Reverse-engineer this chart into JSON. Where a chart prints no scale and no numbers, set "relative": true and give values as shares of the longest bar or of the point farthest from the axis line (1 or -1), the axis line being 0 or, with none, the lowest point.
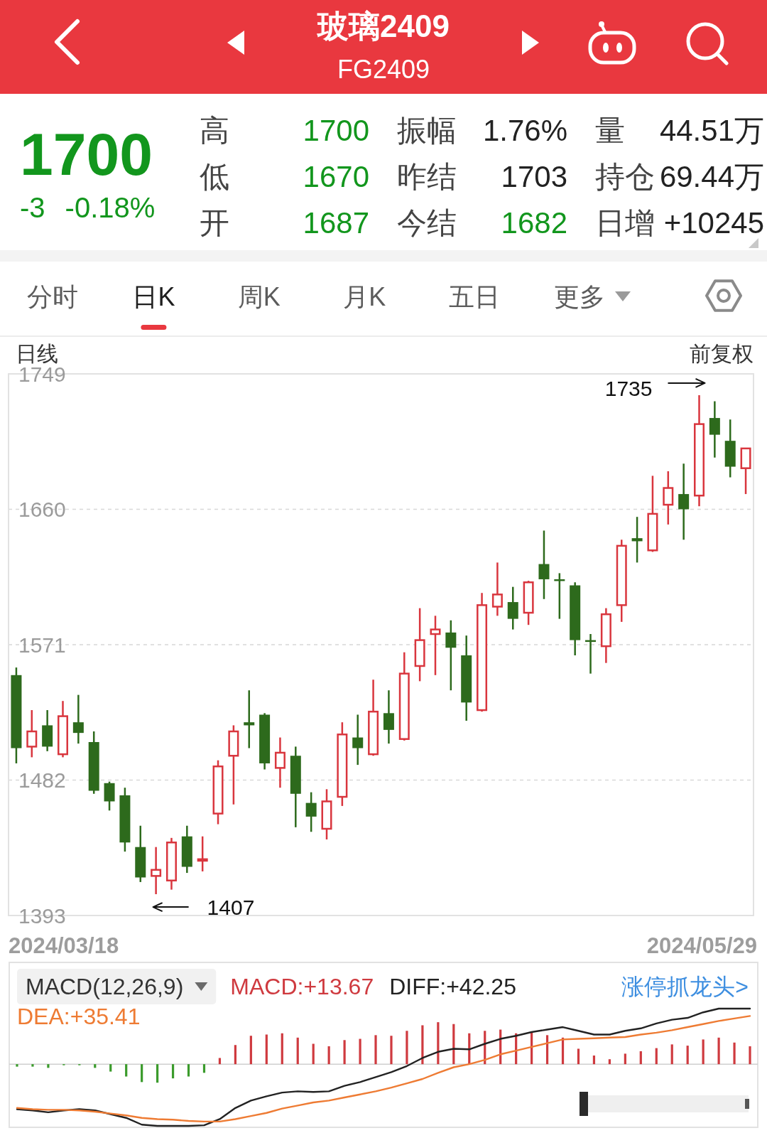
{
  "chart_data": [
    {
      "type": "other",
      "title": "玻璃2409",
      "subtitle": "FG2409",
      "annotations": [
        "1700",
        "-3",
        "-0.18%",
        "高",
        "1700",
        "振幅",
        "1.76%",
        "量",
        "44.51万",
        "低",
        "1670",
        "昨结",
        "1703",
        "持仓",
        "69.44万",
        "开",
        "1687",
        "今结",
        "1682",
        "日增",
        "+10245"
      ]
    },
    {
      "type": "other",
      "annotations": [
        "分时",
        "日K",
        "周K",
        "月K",
        "五日",
        "更多"
      ]
    },
    {
      "type": "candlestick",
      "title": "日线",
      "categories": [
        null,
        null,
        null,
        null,
        null,
        null,
        null,
        null,
        null,
        null,
        null,
        null,
        null,
        null,
        null,
        null,
        null,
        null,
        null,
        null,
        null,
        null,
        null,
        null,
        null,
        null,
        null,
        null,
        null,
        null,
        null,
        null,
        null,
        null,
        null,
        null,
        null,
        null,
        null,
        null,
        null,
        null,
        null,
        null,
        null,
        null,
        null,
        null
      ],
      "ohlc": [
        [
          1551,
          1556,
          1493,
          1503
        ],
        [
          1504,
          1528,
          1497,
          1514
        ],
        [
          1518,
          1528,
          1501,
          1504
        ],
        [
          1499,
          1534,
          1497,
          1524
        ],
        [
          1520,
          1538,
          1506,
          1513
        ],
        [
          1507,
          1514,
          1473,
          1475
        ],
        [
          1480,
          1481,
          1462,
          1468
        ],
        [
          1472,
          1477,
          1435,
          1441
        ],
        [
          1438,
          1452,
          1415,
          1418
        ],
        [
          1419,
          1438,
          1407,
          1423
        ],
        [
          1416,
          1444,
          1410,
          1441
        ],
        [
          1445,
          1452,
          1421,
          1425
        ],
        [
          1429,
          1445,
          1422,
          1430
        ],
        [
          1460,
          1495,
          1453,
          1491
        ],
        [
          1498,
          1518,
          1466,
          1514
        ],
        [
          1520,
          1541,
          1503,
          1518
        ],
        [
          1525,
          1526,
          1489,
          1493
        ],
        [
          1490,
          1510,
          1477,
          1500
        ],
        [
          1498,
          1504,
          1451,
          1473
        ],
        [
          1467,
          1474,
          1448,
          1458
        ],
        [
          1450,
          1476,
          1443,
          1468
        ],
        [
          1471,
          1520,
          1465,
          1512
        ],
        [
          1510,
          1525,
          1492,
          1503
        ],
        [
          1499,
          1548,
          1498,
          1527
        ],
        [
          1526,
          1541,
          1506,
          1515
        ],
        [
          1509,
          1566,
          1508,
          1552
        ],
        [
          1557,
          1595,
          1547,
          1574
        ],
        [
          1578,
          1590,
          1551,
          1581
        ],
        [
          1579,
          1587,
          1541,
          1569
        ],
        [
          1564,
          1577,
          1521,
          1533
        ],
        [
          1528,
          1605,
          1527,
          1597
        ],
        [
          1596,
          1625,
          1590,
          1604
        ],
        [
          1599,
          1609,
          1581,
          1588
        ],
        [
          1592,
          1613,
          1584,
          1612
        ],
        [
          1624,
          1646,
          1601,
          1614
        ],
        [
          1614,
          1618,
          1588,
          1613
        ],
        [
          1610,
          1612,
          1564,
          1574
        ],
        [
          1574,
          1578,
          1552,
          1573
        ],
        [
          1570,
          1595,
          1559,
          1591
        ],
        [
          1597,
          1640,
          1586,
          1636
        ],
        [
          1641,
          1655,
          1625,
          1639
        ],
        [
          1633,
          1682,
          1632,
          1657
        ],
        [
          1663,
          1685,
          1650,
          1674
        ],
        [
          1670,
          1690,
          1640,
          1660
        ],
        [
          1669,
          1735,
          1662,
          1716
        ],
        [
          1720,
          1731,
          1694,
          1709
        ],
        [
          1705,
          1719,
          1681,
          1688
        ],
        [
          1687,
          1700,
          1670,
          1700
        ]
      ],
      "colors": [
        "#2d6a1c",
        "#d9363e",
        "#2d6a1c",
        "#d9363e",
        "#2d6a1c",
        "#2d6a1c",
        "#2d6a1c",
        "#2d6a1c",
        "#2d6a1c",
        "#d9363e",
        "#d9363e",
        "#2d6a1c",
        "#d9363e",
        "#d9363e",
        "#d9363e",
        "#2d6a1c",
        "#2d6a1c",
        "#d9363e",
        "#2d6a1c",
        "#2d6a1c",
        "#d9363e",
        "#d9363e",
        "#2d6a1c",
        "#d9363e",
        "#2d6a1c",
        "#d9363e",
        "#d9363e",
        "#d9363e",
        "#2d6a1c",
        "#2d6a1c",
        "#d9363e",
        "#d9363e",
        "#2d6a1c",
        "#d9363e",
        "#2d6a1c",
        "#2d6a1c",
        "#2d6a1c",
        "#2d6a1c",
        "#d9363e",
        "#d9363e",
        "#2d6a1c",
        "#d9363e",
        "#d9363e",
        "#2d6a1c",
        "#d9363e",
        "#2d6a1c",
        "#2d6a1c",
        "#d9363e"
      ],
      "ylim": [
        1393,
        1749
      ],
      "yticks": [
        1749,
        1660,
        1571,
        1482,
        1393
      ],
      "grid": "y",
      "annotations": [
        "前复权",
        "2024/03/18",
        "2024/05/29",
        "1735",
        "1407"
      ]
    },
    {
      "type": "line",
      "title": "MACD(12,26,9)",
      "relative": true,
      "legend": "top",
      "categories": [
        null,
        null,
        null,
        null,
        null,
        null,
        null,
        null,
        null,
        null,
        null,
        null,
        null,
        null,
        null,
        null,
        null,
        null,
        null,
        null,
        null,
        null,
        null,
        null,
        null,
        null,
        null,
        null,
        null,
        null,
        null,
        null,
        null,
        null,
        null,
        null,
        null,
        null,
        null,
        null,
        null,
        null,
        null,
        null,
        null,
        null,
        null,
        null
      ],
      "series": [
        {
          "name": "MACD:+13.67",
          "type": "bar",
          "color": "#cf3a3f",
          "colors": [
            "#3b9b2c",
            "#3b9b2c",
            "#3b9b2c",
            "#3b9b2c",
            "#3b9b2c",
            "#3b9b2c",
            "#3b9b2c",
            "#3b9b2c",
            "#3b9b2c",
            "#3b9b2c",
            "#3b9b2c",
            "#3b9b2c",
            "#3b9b2c",
            "#cf3a3f",
            "#cf3a3f",
            "#cf3a3f",
            "#cf3a3f",
            "#cf3a3f",
            "#cf3a3f",
            "#cf3a3f",
            "#cf3a3f",
            "#cf3a3f",
            "#cf3a3f",
            "#cf3a3f",
            "#cf3a3f",
            "#cf3a3f",
            "#cf3a3f",
            "#cf3a3f",
            "#cf3a3f",
            "#cf3a3f",
            "#cf3a3f",
            "#cf3a3f",
            "#cf3a3f",
            "#cf3a3f",
            "#cf3a3f",
            "#cf3a3f",
            "#cf3a3f",
            "#cf3a3f",
            "#cf3a3f",
            "#cf3a3f",
            "#cf3a3f",
            "#cf3a3f",
            "#cf3a3f",
            "#cf3a3f",
            "#cf3a3f",
            "#cf3a3f",
            "#cf3a3f",
            "#cf3a3f"
          ],
          "values": [
            -0.04,
            -0.04,
            -0.06,
            -0.01,
            -0.01,
            -0.06,
            -0.12,
            -0.2,
            -0.29,
            -0.3,
            -0.23,
            -0.2,
            -0.14,
            0.1,
            0.31,
            0.46,
            0.48,
            0.5,
            0.43,
            0.33,
            0.29,
            0.39,
            0.41,
            0.47,
            0.46,
            0.54,
            0.63,
            0.68,
            0.65,
            0.5,
            0.54,
            0.56,
            0.5,
            0.51,
            0.47,
            0.43,
            0.25,
            0.14,
            0.08,
            0.17,
            0.21,
            0.26,
            0.32,
            0.3,
            0.4,
            0.43,
            0.35,
            0.29
          ]
        },
        {
          "name": "DIFF:+42.25",
          "type": "line",
          "color": "#222222",
          "values": [
            -0.73,
            -0.75,
            -0.78,
            -0.75,
            -0.73,
            -0.75,
            -0.81,
            -0.87,
            -0.98,
            -1,
            -1,
            -1,
            -0.99,
            -0.89,
            -0.71,
            -0.59,
            -0.52,
            -0.46,
            -0.44,
            -0.45,
            -0.44,
            -0.35,
            -0.29,
            -0.21,
            -0.13,
            -0.03,
            0.1,
            0.2,
            0.25,
            0.24,
            0.33,
            0.41,
            0.46,
            0.52,
            0.56,
            0.6,
            0.54,
            0.48,
            0.48,
            0.54,
            0.58,
            0.66,
            0.72,
            0.75,
            0.84,
            0.9,
            0.9,
            0.9
          ]
        },
        {
          "name": "DEA:+35.41",
          "type": "line",
          "color": "#ee7b33",
          "values": [
            -0.71,
            -0.73,
            -0.74,
            -0.74,
            -0.75,
            -0.77,
            -0.8,
            -0.83,
            -0.87,
            -0.89,
            -0.9,
            -0.92,
            -0.93,
            -0.93,
            -0.89,
            -0.84,
            -0.79,
            -0.72,
            -0.67,
            -0.62,
            -0.59,
            -0.54,
            -0.49,
            -0.44,
            -0.38,
            -0.31,
            -0.24,
            -0.14,
            -0.05,
            0,
            0.07,
            0.16,
            0.22,
            0.28,
            0.34,
            0.4,
            0.41,
            0.42,
            0.43,
            0.44,
            0.48,
            0.51,
            0.55,
            0.6,
            0.65,
            0.7,
            0.74,
            0.78
          ]
        }
      ],
      "annotations": [
        "涨停抓龙头>"
      ]
    }
  ]
}
